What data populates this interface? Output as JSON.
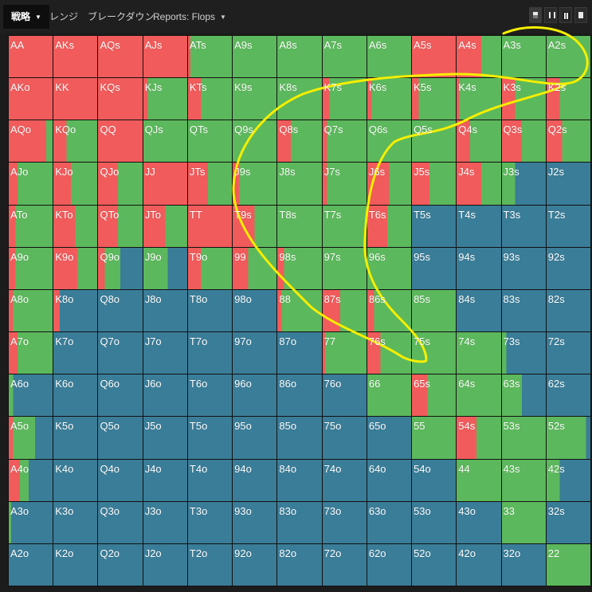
{
  "colors": {
    "raise": "#f15b5b",
    "call": "#5cb85c",
    "fold": "#3a7d98",
    "annotation": "#f5ef00"
  },
  "tabs": [
    {
      "label": "戦略",
      "active": true,
      "dropdown": true
    },
    {
      "label": "レンジ",
      "active": false,
      "dropdown": false
    },
    {
      "label": "ブレークダウン",
      "active": false,
      "dropdown": false
    },
    {
      "label": "Reports: Flops",
      "active": false,
      "dropdown": true
    }
  ],
  "toolbar_icons": [
    "single-view-icon",
    "swap-icon",
    "grid-view-icon",
    "full-view-icon"
  ],
  "hands": [
    [
      {
        "h": "AA",
        "r": 1,
        "c": 0,
        "f": 0
      },
      {
        "h": "AKs",
        "r": 1,
        "c": 0,
        "f": 0
      },
      {
        "h": "AQs",
        "r": 1,
        "c": 0,
        "f": 0
      },
      {
        "h": "AJs",
        "r": 1,
        "c": 0,
        "f": 0
      },
      {
        "h": "ATs",
        "r": 0.05,
        "c": 0.95,
        "f": 0
      },
      {
        "h": "A9s",
        "r": 0,
        "c": 1,
        "f": 0
      },
      {
        "h": "A8s",
        "r": 0,
        "c": 1,
        "f": 0
      },
      {
        "h": "A7s",
        "r": 0,
        "c": 1,
        "f": 0
      },
      {
        "h": "A6s",
        "r": 0,
        "c": 1,
        "f": 0
      },
      {
        "h": "A5s",
        "r": 1,
        "c": 0,
        "f": 0
      },
      {
        "h": "A4s",
        "r": 0.55,
        "c": 0.45,
        "f": 0
      },
      {
        "h": "A3s",
        "r": 0,
        "c": 1,
        "f": 0
      },
      {
        "h": "A2s",
        "r": 0,
        "c": 1,
        "f": 0
      }
    ],
    [
      {
        "h": "AKo",
        "r": 1,
        "c": 0,
        "f": 0
      },
      {
        "h": "KK",
        "r": 1,
        "c": 0,
        "f": 0
      },
      {
        "h": "KQs",
        "r": 1,
        "c": 0,
        "f": 0
      },
      {
        "h": "KJs",
        "r": 0.1,
        "c": 0.9,
        "f": 0
      },
      {
        "h": "KTs",
        "r": 0.3,
        "c": 0.7,
        "f": 0
      },
      {
        "h": "K9s",
        "r": 0,
        "c": 1,
        "f": 0
      },
      {
        "h": "K8s",
        "r": 0,
        "c": 1,
        "f": 0
      },
      {
        "h": "K7s",
        "r": 0.15,
        "c": 0.85,
        "f": 0
      },
      {
        "h": "K6s",
        "r": 0.1,
        "c": 0.9,
        "f": 0
      },
      {
        "h": "K5s",
        "r": 0.15,
        "c": 0.85,
        "f": 0
      },
      {
        "h": "K4s",
        "r": 0.05,
        "c": 0.95,
        "f": 0
      },
      {
        "h": "K3s",
        "r": 0.3,
        "c": 0.7,
        "f": 0
      },
      {
        "h": "K2s",
        "r": 0.3,
        "c": 0.7,
        "f": 0
      }
    ],
    [
      {
        "h": "AQo",
        "r": 0.85,
        "c": 0.15,
        "f": 0
      },
      {
        "h": "KQo",
        "r": 0.3,
        "c": 0.7,
        "f": 0
      },
      {
        "h": "QQ",
        "r": 1,
        "c": 0,
        "f": 0
      },
      {
        "h": "QJs",
        "r": 0,
        "c": 1,
        "f": 0
      },
      {
        "h": "QTs",
        "r": 0,
        "c": 1,
        "f": 0
      },
      {
        "h": "Q9s",
        "r": 0,
        "c": 1,
        "f": 0
      },
      {
        "h": "Q8s",
        "r": 0.3,
        "c": 0.7,
        "f": 0
      },
      {
        "h": "Q7s",
        "r": 0.1,
        "c": 0.9,
        "f": 0
      },
      {
        "h": "Q6s",
        "r": 0,
        "c": 1,
        "f": 0
      },
      {
        "h": "Q5s",
        "r": 0,
        "c": 1,
        "f": 0
      },
      {
        "h": "Q4s",
        "r": 0.3,
        "c": 0.7,
        "f": 0
      },
      {
        "h": "Q3s",
        "r": 0.45,
        "c": 0.55,
        "f": 0
      },
      {
        "h": "Q2s",
        "r": 0.35,
        "c": 0.65,
        "f": 0
      }
    ],
    [
      {
        "h": "AJo",
        "r": 0.2,
        "c": 0.8,
        "f": 0
      },
      {
        "h": "KJo",
        "r": 0.4,
        "c": 0.6,
        "f": 0
      },
      {
        "h": "QJo",
        "r": 0.45,
        "c": 0.55,
        "f": 0
      },
      {
        "h": "JJ",
        "r": 1,
        "c": 0,
        "f": 0
      },
      {
        "h": "JTs",
        "r": 0.45,
        "c": 0.55,
        "f": 0
      },
      {
        "h": "J9s",
        "r": 0.15,
        "c": 0.85,
        "f": 0
      },
      {
        "h": "J8s",
        "r": 0,
        "c": 1,
        "f": 0
      },
      {
        "h": "J7s",
        "r": 0.1,
        "c": 0.9,
        "f": 0
      },
      {
        "h": "J6s",
        "r": 0.5,
        "c": 0.5,
        "f": 0
      },
      {
        "h": "J5s",
        "r": 0.4,
        "c": 0.6,
        "f": 0
      },
      {
        "h": "J4s",
        "r": 0.55,
        "c": 0.45,
        "f": 0
      },
      {
        "h": "J3s",
        "r": 0,
        "c": 0.3,
        "f": 0.7
      },
      {
        "h": "J2s",
        "r": 0,
        "c": 0,
        "f": 1
      }
    ],
    [
      {
        "h": "ATo",
        "r": 0.15,
        "c": 0.85,
        "f": 0
      },
      {
        "h": "KTo",
        "r": 0.5,
        "c": 0.5,
        "f": 0
      },
      {
        "h": "QTo",
        "r": 0.45,
        "c": 0.55,
        "f": 0
      },
      {
        "h": "JTo",
        "r": 0.5,
        "c": 0.5,
        "f": 0
      },
      {
        "h": "TT",
        "r": 1,
        "c": 0,
        "f": 0
      },
      {
        "h": "T9s",
        "r": 0.5,
        "c": 0.5,
        "f": 0
      },
      {
        "h": "T8s",
        "r": 0,
        "c": 1,
        "f": 0
      },
      {
        "h": "T7s",
        "r": 0,
        "c": 1,
        "f": 0
      },
      {
        "h": "T6s",
        "r": 0.45,
        "c": 0.55,
        "f": 0
      },
      {
        "h": "T5s",
        "r": 0,
        "c": 0,
        "f": 1
      },
      {
        "h": "T4s",
        "r": 0,
        "c": 0,
        "f": 1
      },
      {
        "h": "T3s",
        "r": 0,
        "c": 0,
        "f": 1
      },
      {
        "h": "T2s",
        "r": 0,
        "c": 0,
        "f": 1
      }
    ],
    [
      {
        "h": "A9o",
        "r": 0.15,
        "c": 0.85,
        "f": 0
      },
      {
        "h": "K9o",
        "r": 0.55,
        "c": 0.45,
        "f": 0
      },
      {
        "h": "Q9o",
        "r": 0.15,
        "c": 0.35,
        "f": 0.5
      },
      {
        "h": "J9o",
        "r": 0,
        "c": 0.55,
        "f": 0.45
      },
      {
        "h": "T9o",
        "r": 0.3,
        "c": 0.7,
        "f": 0
      },
      {
        "h": "99",
        "r": 0.35,
        "c": 0.65,
        "f": 0
      },
      {
        "h": "98s",
        "r": 0.15,
        "c": 0.85,
        "f": 0
      },
      {
        "h": "97s",
        "r": 0,
        "c": 1,
        "f": 0
      },
      {
        "h": "96s",
        "r": 0,
        "c": 1,
        "f": 0
      },
      {
        "h": "95s",
        "r": 0,
        "c": 0,
        "f": 1
      },
      {
        "h": "94s",
        "r": 0,
        "c": 0,
        "f": 1
      },
      {
        "h": "93s",
        "r": 0,
        "c": 0,
        "f": 1
      },
      {
        "h": "92s",
        "r": 0,
        "c": 0,
        "f": 1
      }
    ],
    [
      {
        "h": "A8o",
        "r": 0.1,
        "c": 0.9,
        "f": 0
      },
      {
        "h": "K8o",
        "r": 0.15,
        "c": 0,
        "f": 0.85
      },
      {
        "h": "Q8o",
        "r": 0,
        "c": 0,
        "f": 1
      },
      {
        "h": "J8o",
        "r": 0,
        "c": 0,
        "f": 1
      },
      {
        "h": "T8o",
        "r": 0,
        "c": 0,
        "f": 1
      },
      {
        "h": "98o",
        "r": 0,
        "c": 0,
        "f": 1
      },
      {
        "h": "88",
        "r": 0.1,
        "c": 0.9,
        "f": 0
      },
      {
        "h": "87s",
        "r": 0.4,
        "c": 0.6,
        "f": 0
      },
      {
        "h": "86s",
        "r": 0.15,
        "c": 0.85,
        "f": 0
      },
      {
        "h": "85s",
        "r": 0,
        "c": 1,
        "f": 0
      },
      {
        "h": "84s",
        "r": 0,
        "c": 0,
        "f": 1
      },
      {
        "h": "83s",
        "r": 0,
        "c": 0,
        "f": 1
      },
      {
        "h": "82s",
        "r": 0,
        "c": 0,
        "f": 1
      }
    ],
    [
      {
        "h": "A7o",
        "r": 0.2,
        "c": 0.8,
        "f": 0
      },
      {
        "h": "K7o",
        "r": 0,
        "c": 0,
        "f": 1
      },
      {
        "h": "Q7o",
        "r": 0,
        "c": 0,
        "f": 1
      },
      {
        "h": "J7o",
        "r": 0,
        "c": 0,
        "f": 1
      },
      {
        "h": "T7o",
        "r": 0,
        "c": 0,
        "f": 1
      },
      {
        "h": "97o",
        "r": 0,
        "c": 0,
        "f": 1
      },
      {
        "h": "87o",
        "r": 0,
        "c": 0,
        "f": 1
      },
      {
        "h": "77",
        "r": 0.05,
        "c": 0.95,
        "f": 0
      },
      {
        "h": "76s",
        "r": 0.3,
        "c": 0.7,
        "f": 0
      },
      {
        "h": "75s",
        "r": 0,
        "c": 1,
        "f": 0
      },
      {
        "h": "74s",
        "r": 0,
        "c": 1,
        "f": 0
      },
      {
        "h": "73s",
        "r": 0,
        "c": 0.1,
        "f": 0.9
      },
      {
        "h": "72s",
        "r": 0,
        "c": 0,
        "f": 1
      }
    ],
    [
      {
        "h": "A6o",
        "r": 0,
        "c": 0.1,
        "f": 0.9
      },
      {
        "h": "K6o",
        "r": 0,
        "c": 0,
        "f": 1
      },
      {
        "h": "Q6o",
        "r": 0,
        "c": 0,
        "f": 1
      },
      {
        "h": "J6o",
        "r": 0,
        "c": 0,
        "f": 1
      },
      {
        "h": "T6o",
        "r": 0,
        "c": 0,
        "f": 1
      },
      {
        "h": "96o",
        "r": 0,
        "c": 0,
        "f": 1
      },
      {
        "h": "86o",
        "r": 0,
        "c": 0,
        "f": 1
      },
      {
        "h": "76o",
        "r": 0,
        "c": 0,
        "f": 1
      },
      {
        "h": "66",
        "r": 0,
        "c": 1,
        "f": 0
      },
      {
        "h": "65s",
        "r": 0.35,
        "c": 0.65,
        "f": 0
      },
      {
        "h": "64s",
        "r": 0,
        "c": 1,
        "f": 0
      },
      {
        "h": "63s",
        "r": 0,
        "c": 0.45,
        "f": 0.55
      },
      {
        "h": "62s",
        "r": 0,
        "c": 0,
        "f": 1
      }
    ],
    [
      {
        "h": "A5o",
        "r": 0.1,
        "c": 0.5,
        "f": 0.4
      },
      {
        "h": "K5o",
        "r": 0,
        "c": 0,
        "f": 1
      },
      {
        "h": "Q5o",
        "r": 0,
        "c": 0,
        "f": 1
      },
      {
        "h": "J5o",
        "r": 0,
        "c": 0,
        "f": 1
      },
      {
        "h": "T5o",
        "r": 0,
        "c": 0,
        "f": 1
      },
      {
        "h": "95o",
        "r": 0,
        "c": 0,
        "f": 1
      },
      {
        "h": "85o",
        "r": 0,
        "c": 0,
        "f": 1
      },
      {
        "h": "75o",
        "r": 0,
        "c": 0,
        "f": 1
      },
      {
        "h": "65o",
        "r": 0,
        "c": 0,
        "f": 1
      },
      {
        "h": "55",
        "r": 0,
        "c": 1,
        "f": 0
      },
      {
        "h": "54s",
        "r": 0.45,
        "c": 0.55,
        "f": 0
      },
      {
        "h": "53s",
        "r": 0,
        "c": 1,
        "f": 0
      },
      {
        "h": "52s",
        "r": 0,
        "c": 0.9,
        "f": 0.1
      }
    ],
    [
      {
        "h": "A4o",
        "r": 0.25,
        "c": 0.2,
        "f": 0.55
      },
      {
        "h": "K4o",
        "r": 0,
        "c": 0,
        "f": 1
      },
      {
        "h": "Q4o",
        "r": 0,
        "c": 0,
        "f": 1
      },
      {
        "h": "J4o",
        "r": 0,
        "c": 0,
        "f": 1
      },
      {
        "h": "T4o",
        "r": 0,
        "c": 0,
        "f": 1
      },
      {
        "h": "94o",
        "r": 0,
        "c": 0,
        "f": 1
      },
      {
        "h": "84o",
        "r": 0,
        "c": 0,
        "f": 1
      },
      {
        "h": "74o",
        "r": 0,
        "c": 0,
        "f": 1
      },
      {
        "h": "64o",
        "r": 0,
        "c": 0,
        "f": 1
      },
      {
        "h": "54o",
        "r": 0,
        "c": 0,
        "f": 1
      },
      {
        "h": "44",
        "r": 0,
        "c": 1,
        "f": 0
      },
      {
        "h": "43s",
        "r": 0,
        "c": 1,
        "f": 0
      },
      {
        "h": "42s",
        "r": 0,
        "c": 0.3,
        "f": 0.7
      }
    ],
    [
      {
        "h": "A3o",
        "r": 0,
        "c": 0.05,
        "f": 0.95
      },
      {
        "h": "K3o",
        "r": 0,
        "c": 0,
        "f": 1
      },
      {
        "h": "Q3o",
        "r": 0,
        "c": 0,
        "f": 1
      },
      {
        "h": "J3o",
        "r": 0,
        "c": 0,
        "f": 1
      },
      {
        "h": "T3o",
        "r": 0,
        "c": 0,
        "f": 1
      },
      {
        "h": "93o",
        "r": 0,
        "c": 0,
        "f": 1
      },
      {
        "h": "83o",
        "r": 0,
        "c": 0,
        "f": 1
      },
      {
        "h": "73o",
        "r": 0,
        "c": 0,
        "f": 1
      },
      {
        "h": "63o",
        "r": 0,
        "c": 0,
        "f": 1
      },
      {
        "h": "53o",
        "r": 0,
        "c": 0,
        "f": 1
      },
      {
        "h": "43o",
        "r": 0,
        "c": 0,
        "f": 1
      },
      {
        "h": "33",
        "r": 0,
        "c": 1,
        "f": 0
      },
      {
        "h": "32s",
        "r": 0,
        "c": 0,
        "f": 1
      }
    ],
    [
      {
        "h": "A2o",
        "r": 0,
        "c": 0,
        "f": 1
      },
      {
        "h": "K2o",
        "r": 0,
        "c": 0,
        "f": 1
      },
      {
        "h": "Q2o",
        "r": 0,
        "c": 0,
        "f": 1
      },
      {
        "h": "J2o",
        "r": 0,
        "c": 0,
        "f": 1
      },
      {
        "h": "T2o",
        "r": 0,
        "c": 0,
        "f": 1
      },
      {
        "h": "92o",
        "r": 0,
        "c": 0,
        "f": 1
      },
      {
        "h": "82o",
        "r": 0,
        "c": 0,
        "f": 1
      },
      {
        "h": "72o",
        "r": 0,
        "c": 0,
        "f": 1
      },
      {
        "h": "62o",
        "r": 0,
        "c": 0,
        "f": 1
      },
      {
        "h": "52o",
        "r": 0,
        "c": 0,
        "f": 1
      },
      {
        "h": "42o",
        "r": 0,
        "c": 0,
        "f": 1
      },
      {
        "h": "32o",
        "r": 0,
        "c": 0,
        "f": 1
      },
      {
        "h": "22",
        "r": 0,
        "c": 1,
        "f": 0
      }
    ]
  ]
}
